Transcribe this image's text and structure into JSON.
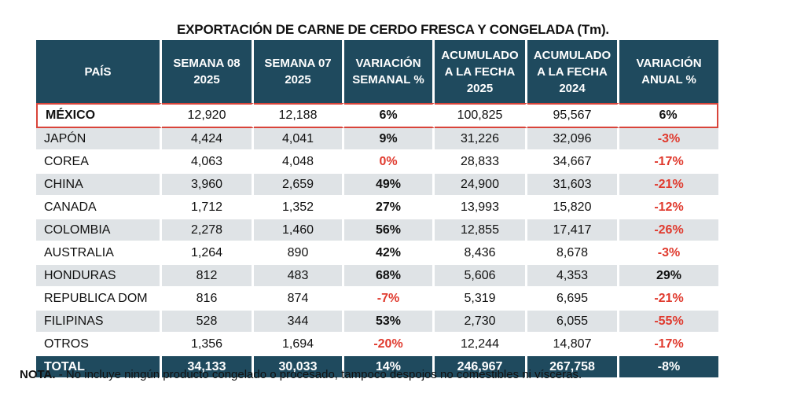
{
  "title": "EXPORTACIÓN DE CARNE DE CERDO FRESCA Y CONGELADA  (Tm).",
  "colors": {
    "header_bg": "#1f4a5e",
    "negative": "#e03a2e",
    "highlight_border": "#d9443a",
    "alt_row": "#dfe3e6"
  },
  "headers": [
    [
      "PAÍS"
    ],
    [
      "SEMANA 08",
      "2025"
    ],
    [
      "SEMANA 07",
      "2025"
    ],
    [
      "VARIACIÓN",
      "SEMANAL %"
    ],
    [
      "ACUMULADO",
      "A LA FECHA",
      "2025"
    ],
    [
      "ACUMULADO",
      "A LA FECHA",
      "2024"
    ],
    [
      "VARIACIÓN",
      "ANUAL %"
    ]
  ],
  "rows": [
    {
      "pais": "MÉXICO",
      "s08": "12,920",
      "s07": "12,188",
      "var_sem": "6%",
      "acum25": "100,825",
      "acum24": "95,567",
      "var_anual": "6%",
      "style": "hl"
    },
    {
      "pais": "JAPÓN",
      "s08": "4,424",
      "s07": "4,041",
      "var_sem": "9%",
      "acum25": "31,226",
      "acum24": "32,096",
      "var_anual": "-3%",
      "style": "alt"
    },
    {
      "pais": "COREA",
      "s08": "4,063",
      "s07": "4,048",
      "var_sem": "0%",
      "acum25": "28,833",
      "acum24": "34,667",
      "var_anual": "-17%",
      "style": "plain"
    },
    {
      "pais": "CHINA",
      "s08": "3,960",
      "s07": "2,659",
      "var_sem": "49%",
      "acum25": "24,900",
      "acum24": "31,603",
      "var_anual": "-21%",
      "style": "alt"
    },
    {
      "pais": "CANADA",
      "s08": "1,712",
      "s07": "1,352",
      "var_sem": "27%",
      "acum25": "13,993",
      "acum24": "15,820",
      "var_anual": "-12%",
      "style": "plain"
    },
    {
      "pais": "COLOMBIA",
      "s08": "2,278",
      "s07": "1,460",
      "var_sem": "56%",
      "acum25": "12,855",
      "acum24": "17,417",
      "var_anual": "-26%",
      "style": "alt"
    },
    {
      "pais": "AUSTRALIA",
      "s08": "1,264",
      "s07": "890",
      "var_sem": "42%",
      "acum25": "8,436",
      "acum24": "8,678",
      "var_anual": "-3%",
      "style": "plain"
    },
    {
      "pais": "HONDURAS",
      "s08": "812",
      "s07": "483",
      "var_sem": "68%",
      "acum25": "5,606",
      "acum24": "4,353",
      "var_anual": "29%",
      "style": "alt"
    },
    {
      "pais": "REPUBLICA DOM",
      "s08": "816",
      "s07": "874",
      "var_sem": "-7%",
      "acum25": "5,319",
      "acum24": "6,695",
      "var_anual": "-21%",
      "style": "plain"
    },
    {
      "pais": "FILIPINAS",
      "s08": "528",
      "s07": "344",
      "var_sem": "53%",
      "acum25": "2,730",
      "acum24": "6,055",
      "var_anual": "-55%",
      "style": "alt"
    },
    {
      "pais": "OTROS",
      "s08": "1,356",
      "s07": "1,694",
      "var_sem": "-20%",
      "acum25": "12,244",
      "acum24": "14,807",
      "var_anual": "-17%",
      "style": "plain"
    }
  ],
  "total": {
    "pais": "TOTAL",
    "s08": "34,133",
    "s07": "30,033",
    "var_sem": "14%",
    "acum25": "246,967",
    "acum24": "267,758",
    "var_anual": "-8%"
  },
  "note": {
    "label": "NOTA.",
    "text": " - No incluye ningún producto congelado o procesado, tampoco despojos no comestibles ni vísceras."
  }
}
